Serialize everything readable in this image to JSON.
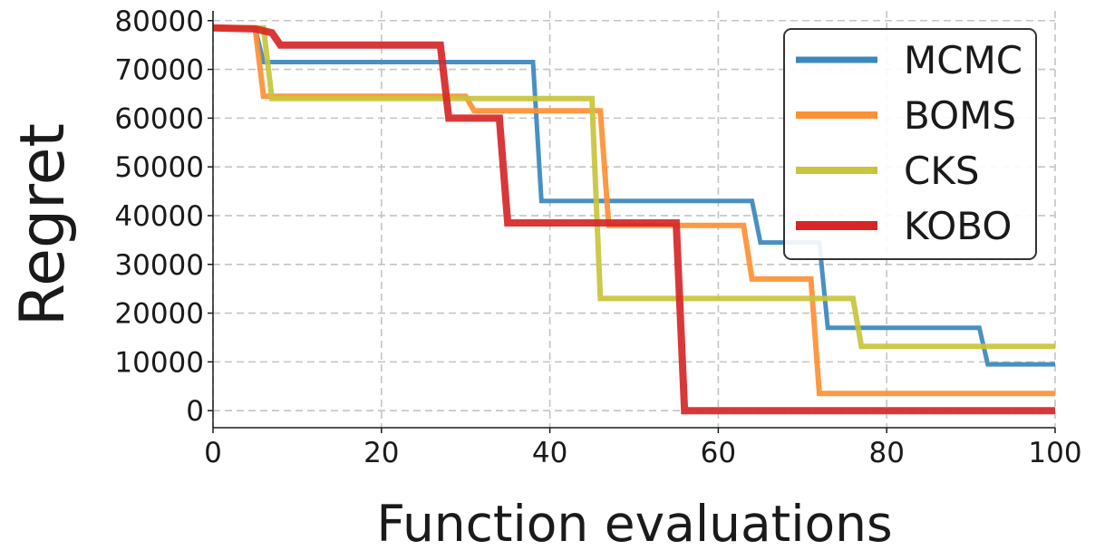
{
  "chart_data": {
    "type": "line",
    "title": "",
    "xlabel": "Function evaluations",
    "ylabel": "Regret",
    "xlim": [
      0,
      100
    ],
    "ylim": [
      -3500,
      82000
    ],
    "xticks": [
      0,
      20,
      40,
      60,
      80,
      100
    ],
    "yticks": [
      0,
      10000,
      20000,
      30000,
      40000,
      50000,
      60000,
      70000,
      80000
    ],
    "grid": true,
    "legend_position": "top-right",
    "series": [
      {
        "name": "MCMC",
        "color": "#3a87bd",
        "steps": [
          [
            0,
            78500
          ],
          [
            5,
            78500
          ],
          [
            6,
            71500
          ],
          [
            38,
            71500
          ],
          [
            39,
            43000
          ],
          [
            64,
            43000
          ],
          [
            65,
            34500
          ],
          [
            72,
            34500
          ],
          [
            73,
            17000
          ],
          [
            91,
            17000
          ],
          [
            92,
            9500
          ],
          [
            100,
            9500
          ]
        ]
      },
      {
        "name": "BOMS",
        "color": "#fd9035",
        "steps": [
          [
            0,
            78500
          ],
          [
            5,
            78500
          ],
          [
            6,
            64500
          ],
          [
            30,
            64500
          ],
          [
            31,
            61500
          ],
          [
            46,
            61500
          ],
          [
            47,
            38000
          ],
          [
            63,
            38000
          ],
          [
            64,
            27000
          ],
          [
            71,
            27000
          ],
          [
            72,
            3500
          ],
          [
            100,
            3500
          ]
        ]
      },
      {
        "name": "CKS",
        "color": "#c8c43c",
        "steps": [
          [
            0,
            78500
          ],
          [
            6,
            78500
          ],
          [
            7,
            64000
          ],
          [
            45,
            64000
          ],
          [
            46,
            23000
          ],
          [
            76,
            23000
          ],
          [
            77,
            13200
          ],
          [
            100,
            13200
          ]
        ]
      },
      {
        "name": "KOBO",
        "color": "#d62728",
        "steps": [
          [
            0,
            78500
          ],
          [
            5,
            78300
          ],
          [
            7,
            77500
          ],
          [
            8,
            75000
          ],
          [
            27,
            75000
          ],
          [
            28,
            60000
          ],
          [
            34,
            60000
          ],
          [
            35,
            38500
          ],
          [
            55,
            38500
          ],
          [
            56,
            0
          ],
          [
            100,
            0
          ]
        ]
      }
    ]
  }
}
